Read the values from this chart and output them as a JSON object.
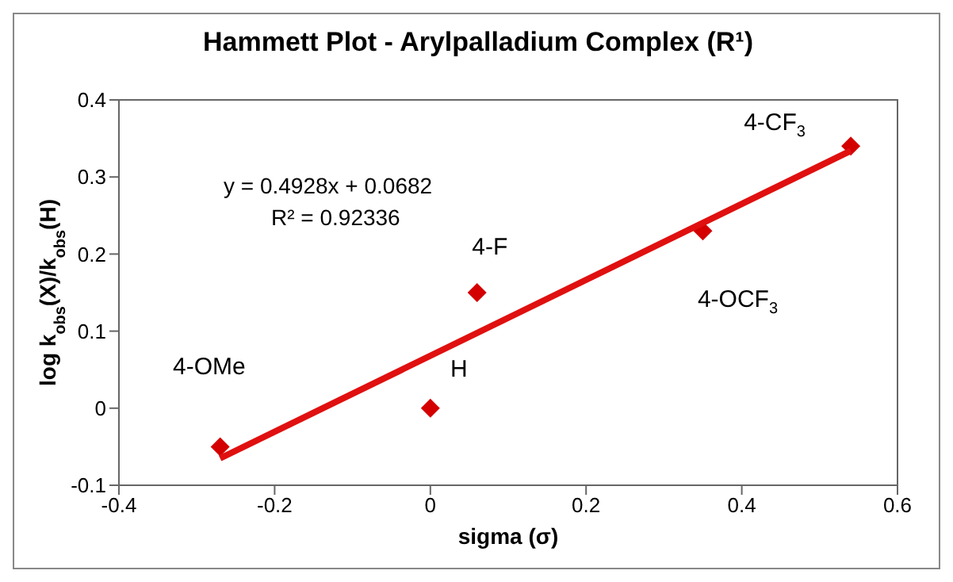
{
  "chart_data": {
    "type": "scatter",
    "title": "Hammett Plot - Arylpalladium Complex (R¹)",
    "xlabel": "sigma (σ)",
    "ylabel": "log k$_{obs}$(X)/k$_{obs}$(H)",
    "x": [
      -0.27,
      0,
      0.06,
      0.35,
      0.54
    ],
    "series": [
      {
        "type": "scatter",
        "color": "#d40000",
        "values": [
          -0.05,
          0,
          0.15,
          0.23,
          0.34
        ],
        "marker": "diamond"
      },
      {
        "type": "line",
        "color": "#e01010",
        "x": [
          -0.27,
          0.54
        ],
        "values": [
          -0.065,
          0.334
        ],
        "marker": "none"
      }
    ],
    "xlim": [
      -0.4,
      0.6
    ],
    "xticks": [
      -0.4,
      -0.2,
      0,
      0.2,
      0.4,
      0.6
    ],
    "ylim": [
      -0.1,
      0.4
    ],
    "yticks": [
      -0.1,
      0,
      0.1,
      0.2,
      0.3,
      0.4
    ],
    "annotations": [
      "y = 0.4928x + 0.0682",
      "R² = 0.92336",
      "4-OMe",
      {
        "text": "H",
        "x": 0,
        "y": 0
      },
      {
        "text": "4-F",
        "x": 0.06,
        "y": 0.15
      },
      {
        "text": "4-OCF$_{3}$",
        "x": 0.35,
        "y": 0.23
      },
      {
        "text": "4-CF$_{3}$",
        "x": 0.54,
        "y": 0.34
      }
    ]
  }
}
